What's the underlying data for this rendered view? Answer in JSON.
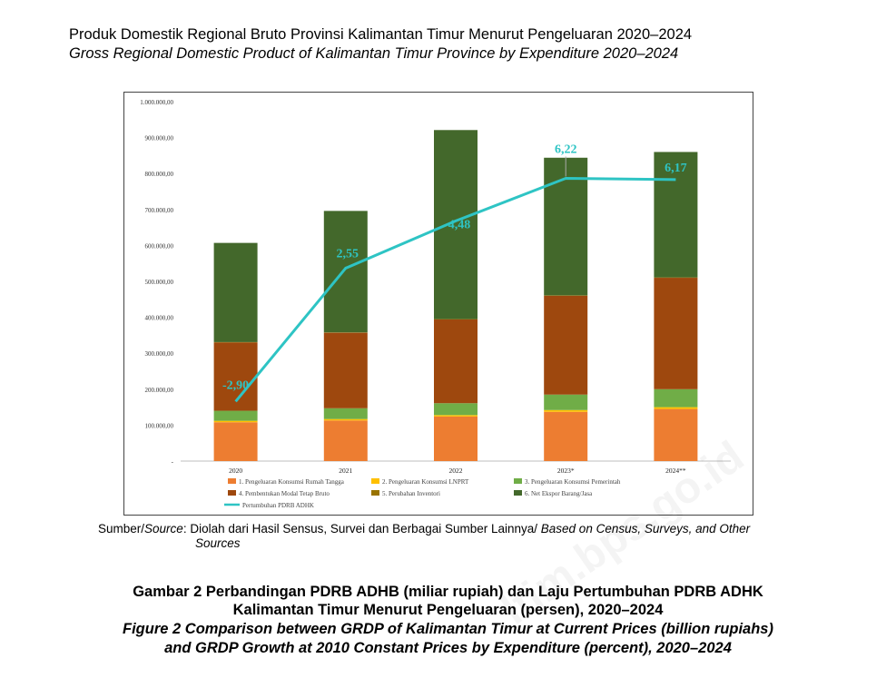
{
  "header": {
    "title_id": "Produk Domestik Regional Bruto Provinsi Kalimantan Timur Menurut Pengeluaran 2020–2024",
    "title_en": "Gross Regional Domestic Product of Kalimantan Timur Province by Expenditure 2020–2024"
  },
  "source": {
    "label_id": "Sumber/",
    "label_en": "Source",
    "text_a": ": Diolah dari Hasil Sensus, Survei dan Berbagai Sumber Lainnya/ ",
    "text_b": "Based on Census, Surveys, and Other",
    "text_c": "Sources"
  },
  "caption": {
    "line1": "Gambar 2  Perbandingan PDRB ADHB (miliar rupiah) dan Laju Pertumbuhan PDRB ADHK",
    "line2": "Kalimantan Timur Menurut Pengeluaran (persen), 2020–2024",
    "line3": "Figure 2  Comparison between GRDP of Kalimantan Timur at Current Prices (billion rupiahs)",
    "line4": "and GRDP Growth at 2010 Constant Prices by Expenditure (percent), 2020–2024"
  },
  "watermark": "ltim.bps.go.id",
  "chart_data": {
    "type": "bar",
    "stacked": true,
    "categories": [
      "2020",
      "2021",
      "2022",
      "2023*",
      "2024**"
    ],
    "y_tick_labels": [
      "-",
      "100.000,00",
      "200.000,00",
      "300.000,00",
      "400.000,00",
      "500.000,00",
      "600.000,00",
      "700.000,00",
      "800.000,00",
      "900.000,00",
      "1.000.000,00"
    ],
    "ylim": [
      0,
      1000000
    ],
    "series": [
      {
        "name": "1. Pengeluaran Konsumsi Rumah Tangga",
        "color": "#ED7D31",
        "values": [
          108000,
          113000,
          124000,
          137000,
          145000
        ]
      },
      {
        "name": "2. Pengeluaran Konsumsi LNPRT",
        "color": "#FFC000",
        "values": [
          4000,
          4000,
          4000,
          5000,
          5000
        ]
      },
      {
        "name": "3. Pengeluaran Konsumsi Pemerintah",
        "color": "#70AD47",
        "values": [
          28000,
          30000,
          33000,
          43000,
          50000
        ]
      },
      {
        "name": "4. Pembentukan Modal Tetap Bruto",
        "color": "#9E480E",
        "values": [
          190000,
          210000,
          233000,
          275000,
          310000
        ]
      },
      {
        "name": "5. Perubahan Inventori",
        "color": "#997300",
        "values": [
          1000,
          1000,
          1000,
          1000,
          1000
        ]
      },
      {
        "name": "6. Net Ekspor Barang/Jasa",
        "color": "#43682B",
        "values": [
          276000,
          338000,
          526000,
          383000,
          349000
        ]
      }
    ],
    "line_series": {
      "name": "Pertumbuhan PDRB ADHK",
      "color": "#2EC4C4",
      "values": [
        -2.9,
        2.55,
        4.48,
        6.22,
        6.17
      ],
      "labels": [
        "-2,90",
        "2,55",
        "4,48",
        "6,22",
        "6,17"
      ]
    },
    "legend_position": "bottom",
    "grid": false
  }
}
